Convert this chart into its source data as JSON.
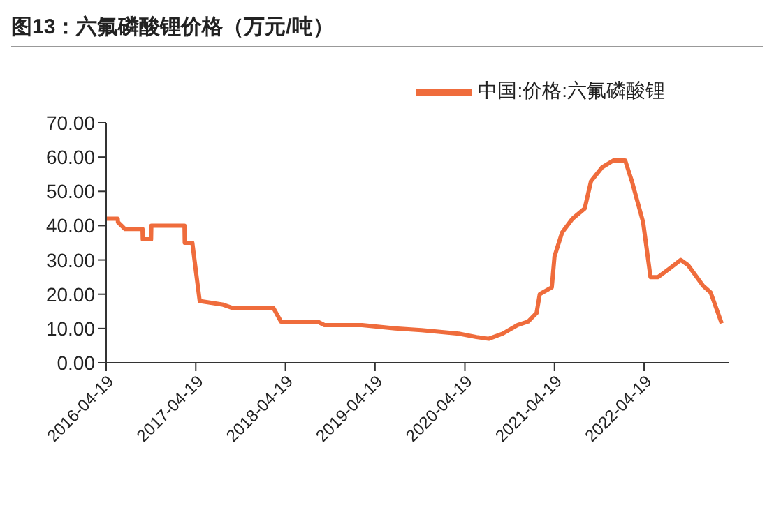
{
  "chart_data": {
    "type": "line",
    "title": "图13：六氟磷酸锂价格（万元/吨）",
    "x": [
      "2016-04-19",
      "2016-06-05",
      "2016-06-06",
      "2016-07-05",
      "2016-09-14",
      "2016-09-15",
      "2016-10-19",
      "2016-10-20",
      "2017-03-04",
      "2017-03-05",
      "2017-04-05",
      "2017-04-19",
      "2017-05-05",
      "2017-08-05",
      "2017-09-15",
      "2018-03-01",
      "2018-04-01",
      "2018-08-28",
      "2018-09-25",
      "2019-02-25",
      "2019-07-10",
      "2019-10-25",
      "2020-03-25",
      "2020-06-05",
      "2020-07-25",
      "2020-09-20",
      "2020-11-20",
      "2021-01-01",
      "2021-02-05",
      "2021-02-18",
      "2021-04-08",
      "2021-04-19",
      "2021-05-20",
      "2021-07-01",
      "2021-08-20",
      "2021-09-15",
      "2021-10-30",
      "2021-12-15",
      "2022-02-01",
      "2022-02-28",
      "2022-04-15",
      "2022-05-15",
      "2022-06-15",
      "2022-08-01",
      "2022-09-15",
      "2022-10-15",
      "2022-12-15",
      "2023-01-15",
      "2023-03-01"
    ],
    "series": [
      {
        "name": "中国:价格:六氟磷酸锂",
        "color": "#ef6c3c",
        "values": [
          42,
          42,
          41,
          39,
          39,
          36,
          36,
          40,
          40,
          35,
          35,
          27,
          18,
          17,
          16,
          16,
          12,
          12,
          11,
          11,
          10,
          9.5,
          8.5,
          7.5,
          7,
          8.5,
          11,
          12,
          14.5,
          20,
          22,
          31,
          38,
          42,
          45,
          53,
          57,
          59,
          59,
          53,
          41,
          25,
          25,
          27.5,
          30,
          28.5,
          22.5,
          20.5,
          11.5
        ]
      }
    ],
    "xlim": [
      "2016-04-19",
      "2023-04-01"
    ],
    "xticks": [
      "2016-04-19",
      "2017-04-19",
      "2018-04-19",
      "2019-04-19",
      "2020-04-19",
      "2021-04-19",
      "2022-04-19"
    ],
    "ylim": [
      0,
      70
    ],
    "yticks": [
      {
        "value": 0,
        "label": "0.00"
      },
      {
        "value": 10,
        "label": "10.00"
      },
      {
        "value": 20,
        "label": "20.00"
      },
      {
        "value": 30,
        "label": "30.00"
      },
      {
        "value": 40,
        "label": "40.00"
      },
      {
        "value": 50,
        "label": "50.00"
      },
      {
        "value": 60,
        "label": "60.00"
      },
      {
        "value": 70,
        "label": "70.00"
      }
    ],
    "grid": false,
    "legend": "top right",
    "marker": "none",
    "line_style": "solid"
  }
}
